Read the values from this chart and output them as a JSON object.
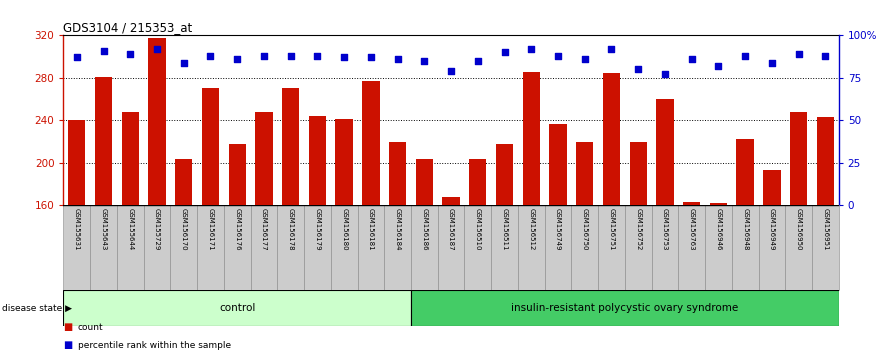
{
  "title": "GDS3104 / 215353_at",
  "samples": [
    "GSM155631",
    "GSM155643",
    "GSM155644",
    "GSM155729",
    "GSM156170",
    "GSM156171",
    "GSM156176",
    "GSM156177",
    "GSM156178",
    "GSM156179",
    "GSM156180",
    "GSM156181",
    "GSM156184",
    "GSM156186",
    "GSM156187",
    "GSM156510",
    "GSM156511",
    "GSM156512",
    "GSM156749",
    "GSM156750",
    "GSM156751",
    "GSM156752",
    "GSM156753",
    "GSM156763",
    "GSM156946",
    "GSM156948",
    "GSM156949",
    "GSM156950",
    "GSM156951"
  ],
  "counts": [
    240,
    281,
    248,
    318,
    204,
    270,
    218,
    248,
    270,
    244,
    241,
    277,
    220,
    204,
    168,
    204,
    218,
    286,
    237,
    220,
    285,
    220,
    260,
    163,
    162,
    222,
    193,
    248,
    243
  ],
  "percentile_ranks": [
    87,
    91,
    89,
    92,
    84,
    88,
    86,
    88,
    88,
    88,
    87,
    87,
    86,
    85,
    79,
    85,
    90,
    92,
    88,
    86,
    92,
    80,
    77,
    86,
    82,
    88,
    84,
    89,
    88
  ],
  "group_control_count": 13,
  "group_disease_count": 16,
  "control_label": "control",
  "disease_label": "insulin-resistant polycystic ovary syndrome",
  "disease_state_label": "disease state",
  "y_min": 160,
  "y_max": 320,
  "y_ticks": [
    160,
    200,
    240,
    280,
    320
  ],
  "right_y_ticks": [
    0,
    25,
    50,
    75,
    100
  ],
  "right_y_labels": [
    "0",
    "25",
    "50",
    "75",
    "100%"
  ],
  "bar_color": "#CC1100",
  "dot_color": "#0000CC",
  "control_bg": "#CCFFCC",
  "disease_bg": "#44CC66",
  "xlabel_bg": "#CCCCCC",
  "legend_count_label": "count",
  "legend_percentile_label": "percentile rank within the sample"
}
